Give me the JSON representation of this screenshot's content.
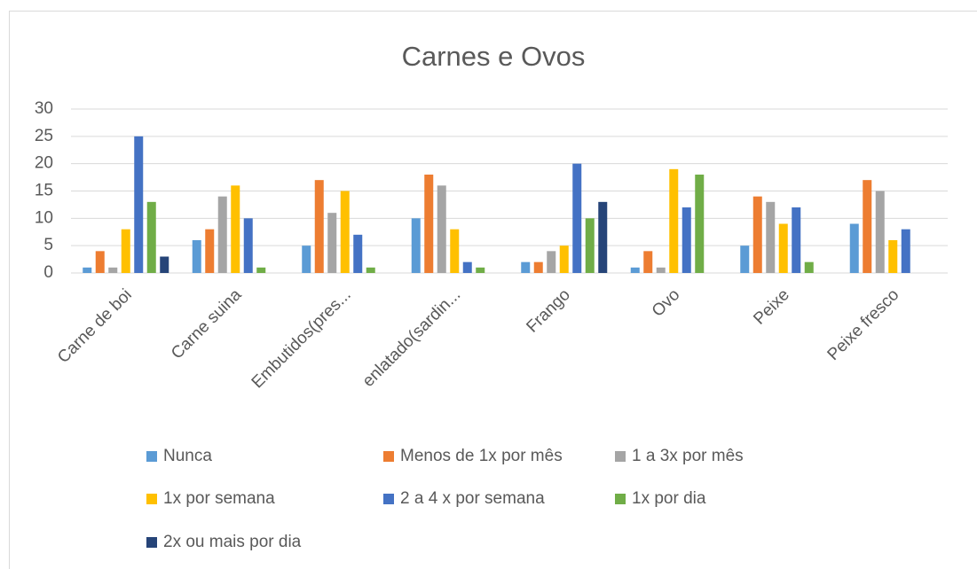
{
  "chart_data": {
    "type": "bar",
    "title": "Carnes e Ovos",
    "categories": [
      "Carne de boi",
      "Carne suina",
      "Embutidos(pres...",
      "enlatado(sardin...",
      "Frango",
      "Ovo",
      "Peixe",
      "Peixe fresco"
    ],
    "series": [
      {
        "name": "Nunca",
        "color": "#5b9bd5",
        "values": [
          1,
          6,
          5,
          10,
          2,
          1,
          5,
          9
        ]
      },
      {
        "name": "Menos de 1x por mês",
        "color": "#ed7d31",
        "values": [
          4,
          8,
          17,
          18,
          2,
          4,
          14,
          17
        ]
      },
      {
        "name": "1 a 3x por mês",
        "color": "#a5a5a5",
        "values": [
          1,
          14,
          11,
          16,
          4,
          1,
          13,
          15
        ]
      },
      {
        "name": "1x por semana",
        "color": "#ffc000",
        "values": [
          8,
          16,
          15,
          8,
          5,
          19,
          9,
          6
        ]
      },
      {
        "name": "2 a 4 x por semana",
        "color": "#4472c4",
        "values": [
          25,
          10,
          7,
          2,
          20,
          12,
          12,
          8
        ]
      },
      {
        "name": "1x por dia",
        "color": "#70ad47",
        "values": [
          13,
          1,
          1,
          1,
          10,
          18,
          2,
          0
        ]
      },
      {
        "name": "2x ou mais por dia",
        "color": "#264478",
        "values": [
          3,
          0,
          0,
          0,
          13,
          0,
          0,
          0
        ]
      }
    ],
    "ylim": [
      0,
      30
    ],
    "yticks": [
      0,
      5,
      10,
      15,
      20,
      25,
      30
    ],
    "grid": true,
    "legend": "bottom"
  }
}
